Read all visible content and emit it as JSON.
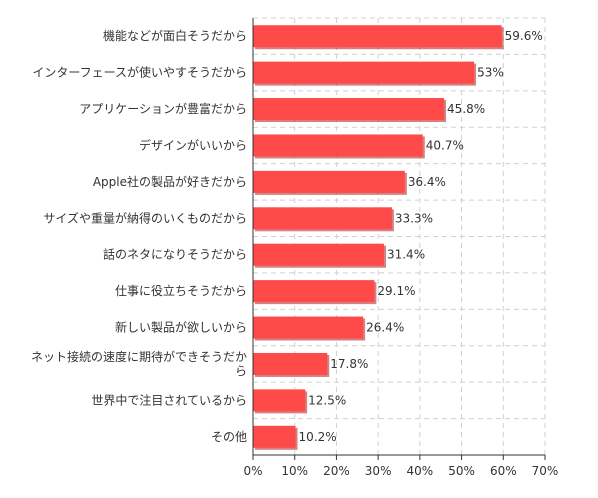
{
  "chart_data": {
    "type": "bar",
    "orientation": "horizontal",
    "categories": [
      "機能などが面白そうだから",
      "インターフェースが使いやすそうだから",
      "アプリケーションが豊富だから",
      "デザインがいいから",
      "Apple社の製品が好きだから",
      "サイズや重量が納得のいくものだから",
      "話のネタになりそうだから",
      "仕事に役立ちそうだから",
      "新しい製品が欲しいから",
      "ネット接続の速度に期待ができそうだから",
      "世界中で注目されているから",
      "その他"
    ],
    "values": [
      59.6,
      53,
      45.8,
      40.7,
      36.4,
      33.3,
      31.4,
      29.1,
      26.4,
      17.8,
      12.5,
      10.2
    ],
    "value_labels": [
      "59.6%",
      "53%",
      "45.8%",
      "40.7%",
      "36.4%",
      "33.3%",
      "31.4%",
      "29.1%",
      "26.4%",
      "17.8%",
      "12.5%",
      "10.2%"
    ],
    "xlim": [
      0,
      70
    ],
    "x_ticks": [
      0,
      10,
      20,
      30,
      40,
      50,
      60,
      70
    ],
    "x_tick_labels": [
      "0%",
      "10%",
      "20%",
      "30%",
      "40%",
      "50%",
      "60%",
      "70%"
    ],
    "title": "",
    "xlabel": "",
    "ylabel": "",
    "grid": true,
    "bar_color": "#ff4a4a",
    "bar_shadow_color": "#b82d2d",
    "grid_color": "#d0d0d0",
    "axis_color": "#333333"
  }
}
